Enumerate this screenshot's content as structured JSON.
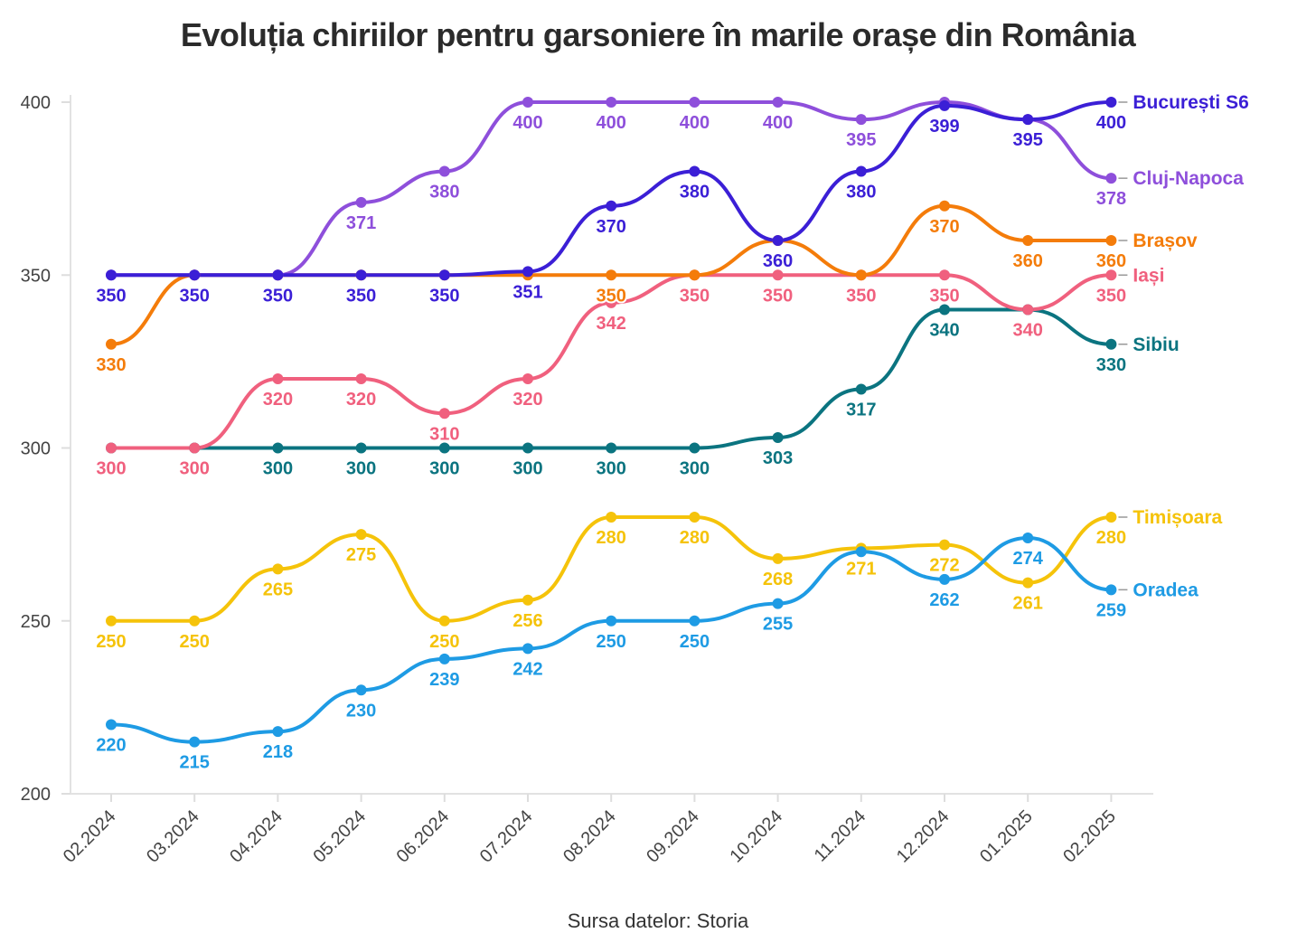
{
  "chart_data": {
    "type": "line",
    "title": "Evoluția chiriilor pentru garsoniere în marile orașe din România",
    "source": "Sursa datelor: Storia",
    "xlabel": "",
    "ylabel": "",
    "ylim": [
      200,
      400
    ],
    "yticks": [
      200,
      250,
      300,
      350,
      400
    ],
    "categories": [
      "02.2024",
      "03.2024",
      "04.2024",
      "05.2024",
      "06.2024",
      "07.2024",
      "08.2024",
      "09.2024",
      "10.2024",
      "11.2024",
      "12.2024",
      "01.2025",
      "02.2025"
    ],
    "grid": false,
    "legend": "direct labels at line ends",
    "series": [
      {
        "name": "Cluj-Napoca",
        "color": "#8e4fdb",
        "values": [
          350,
          350,
          350,
          371,
          380,
          400,
          400,
          400,
          400,
          395,
          400,
          395,
          378
        ]
      },
      {
        "name": "București S6",
        "color": "#3b1fd6",
        "values": [
          350,
          350,
          350,
          350,
          350,
          351,
          370,
          380,
          360,
          380,
          399,
          395,
          400
        ]
      },
      {
        "name": "Iași",
        "color": "#f0607e",
        "values": [
          300,
          300,
          320,
          320,
          310,
          320,
          342,
          350,
          350,
          350,
          350,
          340,
          350
        ]
      },
      {
        "name": "Brașov",
        "color": "#f47c0a",
        "values": [
          330,
          350,
          350,
          350,
          350,
          350,
          350,
          350,
          360,
          350,
          370,
          360,
          360
        ]
      },
      {
        "name": "Sibiu",
        "color": "#0b7480",
        "values": [
          300,
          300,
          300,
          300,
          300,
          300,
          300,
          300,
          303,
          317,
          340,
          340,
          330
        ]
      },
      {
        "name": "Timișoara",
        "color": "#f5c30a",
        "values": [
          250,
          250,
          265,
          275,
          250,
          256,
          280,
          280,
          268,
          271,
          272,
          261,
          280
        ]
      },
      {
        "name": "Oradea",
        "color": "#1e9be4",
        "values": [
          220,
          215,
          218,
          230,
          239,
          242,
          250,
          250,
          255,
          270,
          262,
          274,
          259
        ]
      }
    ],
    "data_labels": [
      {
        "series": "Cluj-Napoca",
        "labels": [
          null,
          null,
          null,
          371,
          380,
          400,
          400,
          400,
          400,
          395,
          null,
          null,
          378
        ]
      },
      {
        "series": "București S6",
        "labels": [
          350,
          350,
          350,
          350,
          350,
          351,
          370,
          380,
          360,
          380,
          399,
          395,
          400
        ]
      },
      {
        "series": "Iași",
        "labels": [
          300,
          300,
          320,
          320,
          310,
          320,
          342,
          350,
          350,
          350,
          350,
          340,
          350
        ]
      },
      {
        "series": "Brașov",
        "labels": [
          330,
          null,
          null,
          null,
          null,
          null,
          350,
          null,
          null,
          null,
          370,
          360,
          360
        ]
      },
      {
        "series": "Sibiu",
        "labels": [
          null,
          null,
          300,
          300,
          300,
          300,
          300,
          300,
          303,
          317,
          340,
          null,
          330
        ]
      },
      {
        "series": "Timișoara",
        "labels": [
          250,
          250,
          265,
          275,
          250,
          256,
          280,
          280,
          268,
          271,
          272,
          261,
          280
        ]
      },
      {
        "series": "Oradea",
        "labels": [
          220,
          215,
          218,
          230,
          239,
          242,
          250,
          250,
          255,
          null,
          262,
          274,
          259
        ]
      }
    ]
  }
}
